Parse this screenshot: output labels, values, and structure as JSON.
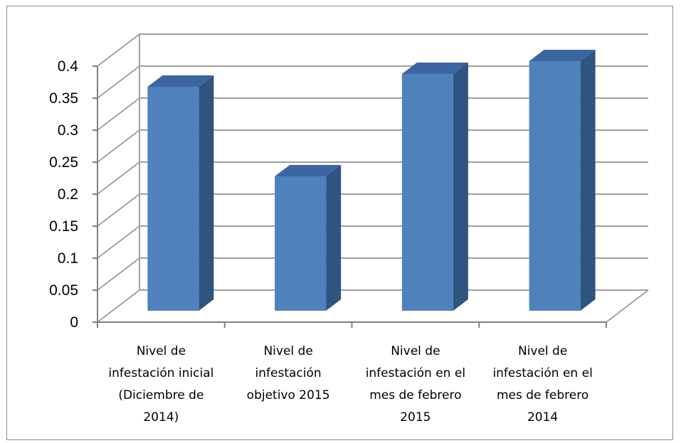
{
  "chart_data": {
    "type": "bar",
    "style": "3d-column",
    "categories": [
      [
        "Nivel de",
        "infestación inicial",
        "(Diciembre de",
        "2014)"
      ],
      [
        "Nivel de",
        "infestación",
        "objetivo 2015"
      ],
      [
        "Nivel de",
        "infestación en el",
        "mes de febrero",
        "2015"
      ],
      [
        "Nivel de",
        "infestación en el",
        "mes de febrero",
        "2014"
      ]
    ],
    "values": [
      0.35,
      0.21,
      0.37,
      0.39
    ],
    "yticks": [
      "0",
      "0.05",
      "0.1",
      "0.15",
      "0.2",
      "0.25",
      "0.3",
      "0.35",
      "0.4"
    ],
    "ylim": [
      0,
      0.4
    ],
    "grid": true,
    "legend": "none",
    "colors": {
      "bar_front": "#4f81bd",
      "bar_side": "#2f5480",
      "bar_top": "#3b66a1",
      "grid": "#a0a0a0",
      "axis": "#808080"
    }
  }
}
